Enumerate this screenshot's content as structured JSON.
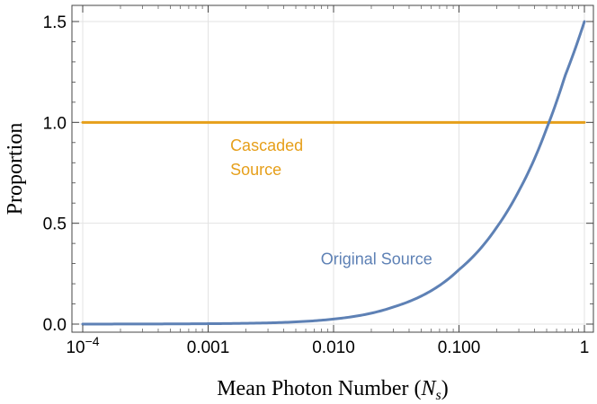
{
  "chart_data": {
    "type": "line",
    "xscale": "log",
    "xlim": [
      0.0001,
      1
    ],
    "ylim": [
      -0.04,
      1.58
    ],
    "xlabel": "Mean Photon Number (",
    "xlabel_symbol": "N",
    "xlabel_subscript": "s",
    "xlabel_close": ")",
    "ylabel": "Proportion",
    "grid": true,
    "x_ticks": [
      {
        "value": 0.0001,
        "base": "10",
        "exp": "−4"
      },
      {
        "value": 0.001,
        "label": "0.001"
      },
      {
        "value": 0.01,
        "label": "0.010"
      },
      {
        "value": 0.1,
        "label": "0.100"
      },
      {
        "value": 1,
        "label": "1"
      }
    ],
    "y_ticks": [
      {
        "value": 0.0,
        "label": "0.0"
      },
      {
        "value": 0.5,
        "label": "0.5"
      },
      {
        "value": 1.0,
        "label": "1.0"
      },
      {
        "value": 1.5,
        "label": "1.5"
      }
    ],
    "series": [
      {
        "name": "Cascaded Source",
        "color": "#E69F1A",
        "x": [
          0.0001,
          1
        ],
        "y": [
          1.0,
          1.0
        ]
      },
      {
        "name": "Original Source",
        "color": "#5E81B5",
        "x": [
          0.0001,
          0.001,
          0.003,
          0.01,
          0.03,
          0.1,
          0.2,
          0.3,
          0.5,
          0.7,
          1.0
        ],
        "y": [
          0.0,
          0.002,
          0.006,
          0.025,
          0.085,
          0.27,
          0.48,
          0.66,
          0.97,
          1.23,
          1.5
        ]
      }
    ],
    "annotations": [
      {
        "series": "Cascaded Source",
        "lines": [
          "Cascaded",
          "Source"
        ],
        "x": 0.0015,
        "y": 0.86,
        "color": "#E69F1A"
      },
      {
        "series": "Original Source",
        "lines": [
          "Original Source"
        ],
        "x": 0.0079,
        "y": 0.295,
        "color": "#5E81B5"
      }
    ]
  }
}
